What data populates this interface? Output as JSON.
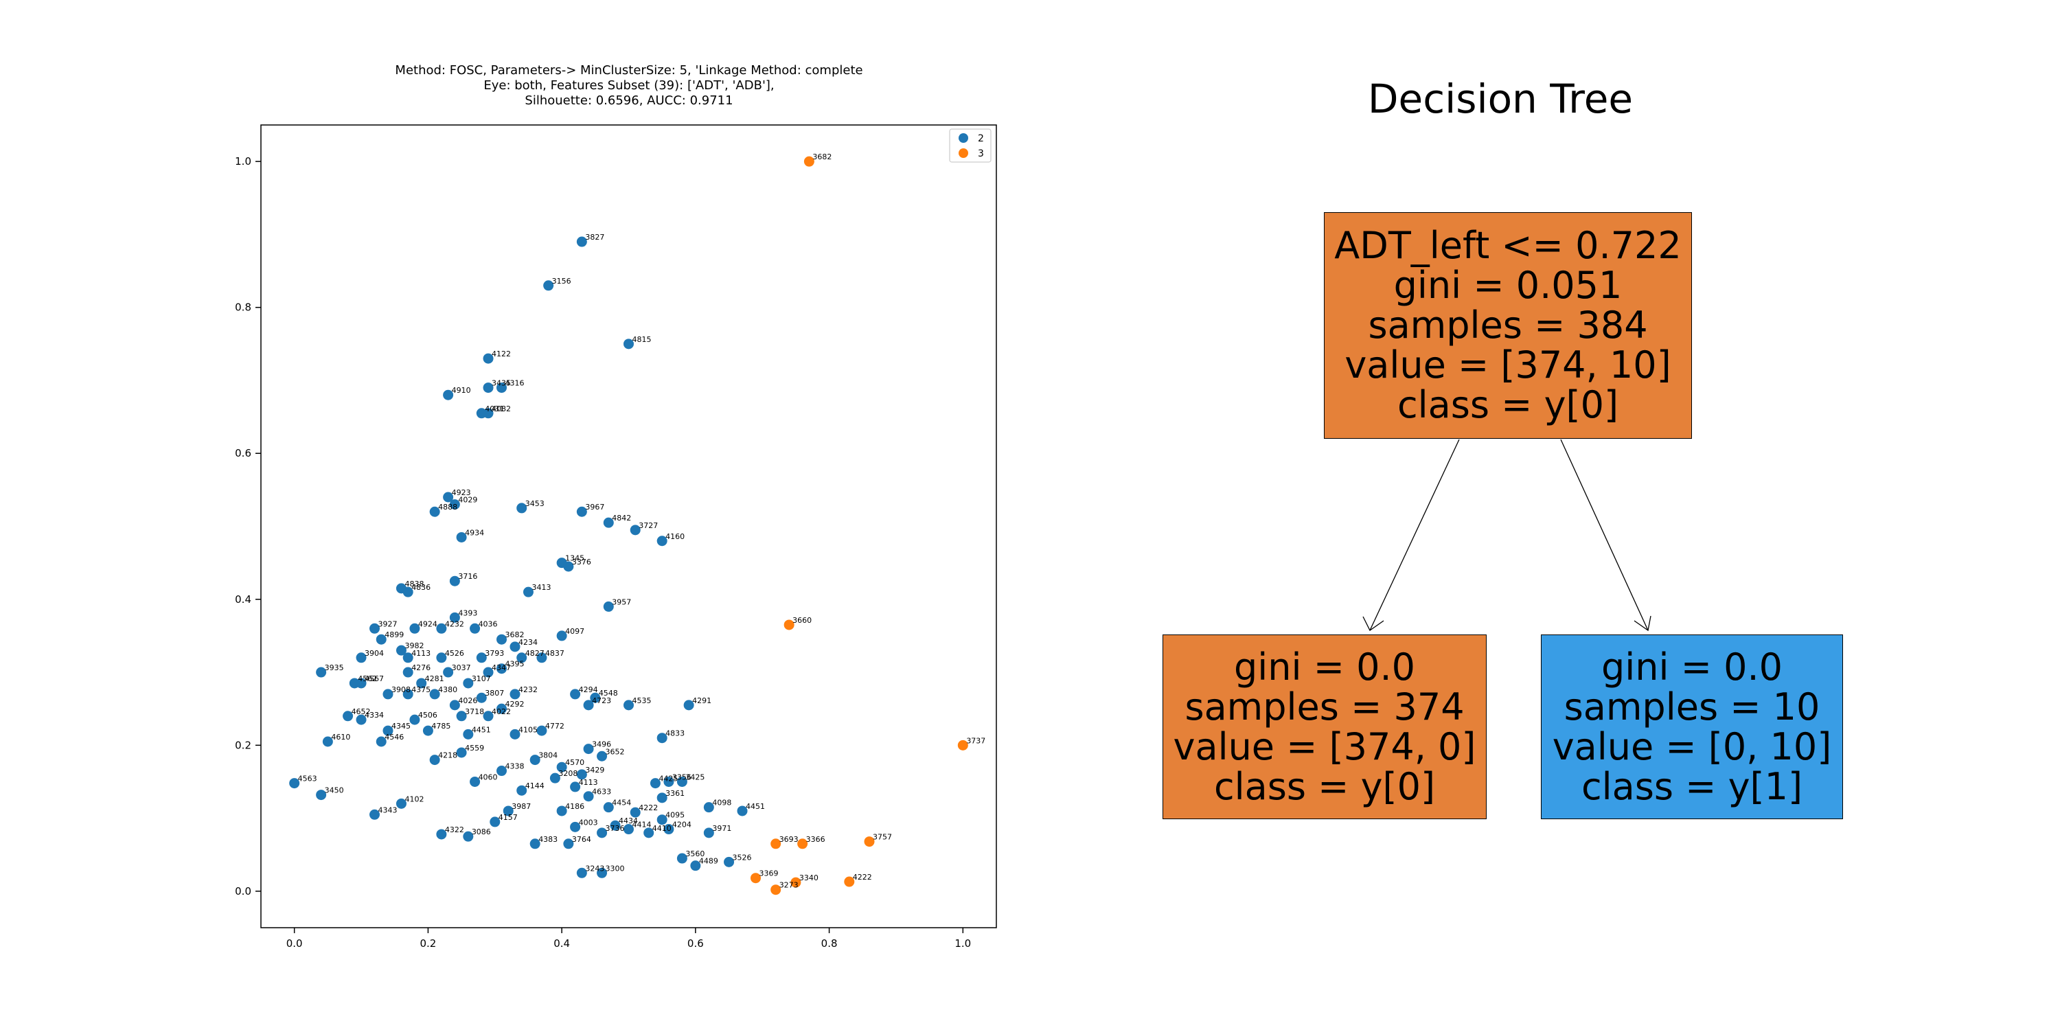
{
  "scatter": {
    "title_lines": [
      "Method: FOSC, Parameters-> MinClusterSize: 5, 'Linkage Method: complete",
      "Eye: both, Features Subset (39): ['ADT', 'ADB'],",
      "Silhouette: 0.6596, AUCC: 0.9711"
    ],
    "legend": [
      {
        "label": "2",
        "color": "#1f77b4"
      },
      {
        "label": "3",
        "color": "#ff7f0e"
      }
    ]
  },
  "tree": {
    "title": "Decision Tree",
    "nodes": [
      {
        "id": "root",
        "color": "#e58139",
        "lines": [
          "ADT_left <= 0.722",
          "gini = 0.051",
          "samples = 384",
          "value = [374, 10]",
          "class = y[0]"
        ]
      },
      {
        "id": "left",
        "color": "#e58139",
        "lines": [
          "gini = 0.0",
          "samples = 374",
          "value = [374, 0]",
          "class = y[0]"
        ]
      },
      {
        "id": "right",
        "color": "#399de5",
        "lines": [
          "gini = 0.0",
          "samples = 10",
          "value = [0, 10]",
          "class = y[1]"
        ]
      }
    ]
  },
  "chart_data": [
    {
      "type": "scatter",
      "title": "Method: FOSC, Parameters-> MinClusterSize: 5, 'Linkage Method: complete\nEye: both, Features Subset (39): ['ADT', 'ADB'],\nSilhouette: 0.6596, AUCC: 0.9711",
      "xlabel": "",
      "ylabel": "",
      "xlim": [
        -0.05,
        1.05
      ],
      "ylim": [
        -0.05,
        1.05
      ],
      "xticks": [
        "0.0",
        "0.2",
        "0.4",
        "0.6",
        "0.8",
        "1.0"
      ],
      "yticks": [
        "0.0",
        "0.2",
        "0.4",
        "0.6",
        "0.8",
        "1.0"
      ],
      "grid": false,
      "legend_position": "top-right",
      "series": [
        {
          "name": "2",
          "color": "#1f77b4",
          "points": [
            [
              0.43,
              0.89,
              "3827"
            ],
            [
              0.38,
              0.83,
              "3156"
            ],
            [
              0.5,
              0.75,
              "4815"
            ],
            [
              0.29,
              0.73,
              "4122"
            ],
            [
              0.29,
              0.69,
              "3435"
            ],
            [
              0.31,
              0.69,
              "4316"
            ],
            [
              0.23,
              0.68,
              "4910"
            ],
            [
              0.28,
              0.655,
              "4031"
            ],
            [
              0.29,
              0.655,
              "4082"
            ],
            [
              0.23,
              0.54,
              "4923"
            ],
            [
              0.24,
              0.53,
              "4029"
            ],
            [
              0.21,
              0.52,
              "4888"
            ],
            [
              0.34,
              0.525,
              "3453"
            ],
            [
              0.43,
              0.52,
              "3967"
            ],
            [
              0.47,
              0.505,
              "4842"
            ],
            [
              0.51,
              0.495,
              "3727"
            ],
            [
              0.55,
              0.48,
              "4160"
            ],
            [
              0.25,
              0.485,
              "4934"
            ],
            [
              0.4,
              0.45,
              "1345"
            ],
            [
              0.41,
              0.445,
              "3376"
            ],
            [
              0.24,
              0.425,
              "3716"
            ],
            [
              0.16,
              0.415,
              "4838"
            ],
            [
              0.17,
              0.41,
              "4836"
            ],
            [
              0.35,
              0.41,
              "3413"
            ],
            [
              0.47,
              0.39,
              "3957"
            ],
            [
              0.24,
              0.375,
              "4393"
            ],
            [
              0.12,
              0.36,
              "3927"
            ],
            [
              0.4,
              0.35,
              "4097"
            ],
            [
              0.13,
              0.345,
              "4899"
            ],
            [
              0.18,
              0.36,
              "4924"
            ],
            [
              0.22,
              0.36,
              "4232"
            ],
            [
              0.27,
              0.36,
              "4036"
            ],
            [
              0.31,
              0.345,
              "3682"
            ],
            [
              0.33,
              0.335,
              "4234"
            ],
            [
              0.16,
              0.33,
              "3982"
            ],
            [
              0.1,
              0.32,
              "3904"
            ],
            [
              0.17,
              0.32,
              "4113"
            ],
            [
              0.22,
              0.32,
              "4526"
            ],
            [
              0.28,
              0.32,
              "3793"
            ],
            [
              0.34,
              0.32,
              "4827"
            ],
            [
              0.37,
              0.32,
              "4837"
            ],
            [
              0.04,
              0.3,
              "3935"
            ],
            [
              0.17,
              0.3,
              "4276"
            ],
            [
              0.23,
              0.3,
              "3037"
            ],
            [
              0.29,
              0.3,
              "4347"
            ],
            [
              0.31,
              0.305,
              "4395"
            ],
            [
              0.09,
              0.285,
              "4562"
            ],
            [
              0.1,
              0.285,
              "4567"
            ],
            [
              0.19,
              0.285,
              "4281"
            ],
            [
              0.26,
              0.285,
              "3107"
            ],
            [
              0.33,
              0.27,
              "4232"
            ],
            [
              0.42,
              0.27,
              "4294"
            ],
            [
              0.45,
              0.265,
              "4548"
            ],
            [
              0.14,
              0.27,
              "3908"
            ],
            [
              0.17,
              0.27,
              "4375"
            ],
            [
              0.21,
              0.27,
              "4380"
            ],
            [
              0.28,
              0.265,
              "3807"
            ],
            [
              0.5,
              0.255,
              "4535"
            ],
            [
              0.59,
              0.255,
              "4291"
            ],
            [
              0.44,
              0.255,
              "4723"
            ],
            [
              0.24,
              0.255,
              "4026"
            ],
            [
              0.31,
              0.25,
              "4292"
            ],
            [
              0.08,
              0.24,
              "4652"
            ],
            [
              0.1,
              0.235,
              "4334"
            ],
            [
              0.18,
              0.235,
              "4506"
            ],
            [
              0.25,
              0.24,
              "3718"
            ],
            [
              0.29,
              0.24,
              "4022"
            ],
            [
              0.14,
              0.22,
              "4345"
            ],
            [
              0.2,
              0.22,
              "4785"
            ],
            [
              0.26,
              0.215,
              "4451"
            ],
            [
              0.33,
              0.215,
              "4105"
            ],
            [
              0.37,
              0.22,
              "4772"
            ],
            [
              0.55,
              0.21,
              "4833"
            ],
            [
              0.05,
              0.205,
              "4610"
            ],
            [
              0.13,
              0.205,
              "4546"
            ],
            [
              0.44,
              0.195,
              "3496"
            ],
            [
              0.46,
              0.185,
              "3652"
            ],
            [
              0.36,
              0.18,
              "3804"
            ],
            [
              0.4,
              0.17,
              "4570"
            ],
            [
              0.43,
              0.16,
              "3429"
            ],
            [
              0.39,
              0.155,
              "3208"
            ],
            [
              0.56,
              0.15,
              "3356"
            ],
            [
              0.58,
              0.15,
              "3425"
            ],
            [
              0.54,
              0.148,
              "4425"
            ],
            [
              0.42,
              0.143,
              "4113"
            ],
            [
              0.34,
              0.138,
              "4144"
            ],
            [
              0.44,
              0.13,
              "4633"
            ],
            [
              0.55,
              0.128,
              "3361"
            ],
            [
              0.62,
              0.115,
              "4098"
            ],
            [
              0.67,
              0.11,
              "4451"
            ],
            [
              0.47,
              0.115,
              "4454"
            ],
            [
              0.51,
              0.108,
              "4222"
            ],
            [
              0.4,
              0.11,
              "4186"
            ],
            [
              0.32,
              0.11,
              "3987"
            ],
            [
              0.55,
              0.098,
              "4095"
            ],
            [
              0.48,
              0.09,
              "4434"
            ],
            [
              0.5,
              0.085,
              "4414"
            ],
            [
              0.56,
              0.085,
              "4204"
            ],
            [
              0.42,
              0.088,
              "4003"
            ],
            [
              0.62,
              0.08,
              "3971"
            ],
            [
              0.46,
              0.08,
              "3736"
            ],
            [
              0.53,
              0.08,
              "4410"
            ],
            [
              0.26,
              0.075,
              "3086"
            ],
            [
              0.22,
              0.078,
              "4322"
            ],
            [
              0.36,
              0.065,
              "4383"
            ],
            [
              0.41,
              0.065,
              "3764"
            ],
            [
              0.58,
              0.045,
              "3560"
            ],
            [
              0.6,
              0.035,
              "4489"
            ],
            [
              0.65,
              0.04,
              "3526"
            ],
            [
              0.43,
              0.025,
              "3243"
            ],
            [
              0.46,
              0.025,
              "3300"
            ],
            [
              -0.0,
              0.148,
              "4563"
            ],
            [
              0.04,
              0.132,
              "3450"
            ],
            [
              0.12,
              0.105,
              "4343"
            ],
            [
              0.16,
              0.12,
              "4102"
            ],
            [
              0.3,
              0.095,
              "4157"
            ],
            [
              0.21,
              0.18,
              "4218"
            ],
            [
              0.25,
              0.19,
              "4559"
            ],
            [
              0.27,
              0.15,
              "4060"
            ],
            [
              0.31,
              0.165,
              "4338"
            ]
          ]
        },
        {
          "name": "3",
          "color": "#ff7f0e",
          "points": [
            [
              0.77,
              1.0,
              "3682"
            ],
            [
              0.74,
              0.365,
              "3660"
            ],
            [
              1.0,
              0.2,
              "3737"
            ],
            [
              0.86,
              0.068,
              "3757"
            ],
            [
              0.72,
              0.065,
              "3693"
            ],
            [
              0.76,
              0.065,
              "3366"
            ],
            [
              0.69,
              0.018,
              "3369"
            ],
            [
              0.75,
              0.012,
              "3340"
            ],
            [
              0.72,
              0.002,
              "3273"
            ],
            [
              0.83,
              0.013,
              "4222"
            ]
          ]
        }
      ]
    },
    {
      "type": "table",
      "title": "Decision Tree",
      "nodes": [
        {
          "id": "root",
          "split": "ADT_left <= 0.722",
          "gini": 0.051,
          "samples": 384,
          "value": [
            374,
            10
          ],
          "class": "y[0]"
        },
        {
          "id": "left",
          "parent": "root",
          "gini": 0.0,
          "samples": 374,
          "value": [
            374,
            0
          ],
          "class": "y[0]"
        },
        {
          "id": "right",
          "parent": "root",
          "gini": 0.0,
          "samples": 10,
          "value": [
            0,
            10
          ],
          "class": "y[1]"
        }
      ]
    }
  ]
}
